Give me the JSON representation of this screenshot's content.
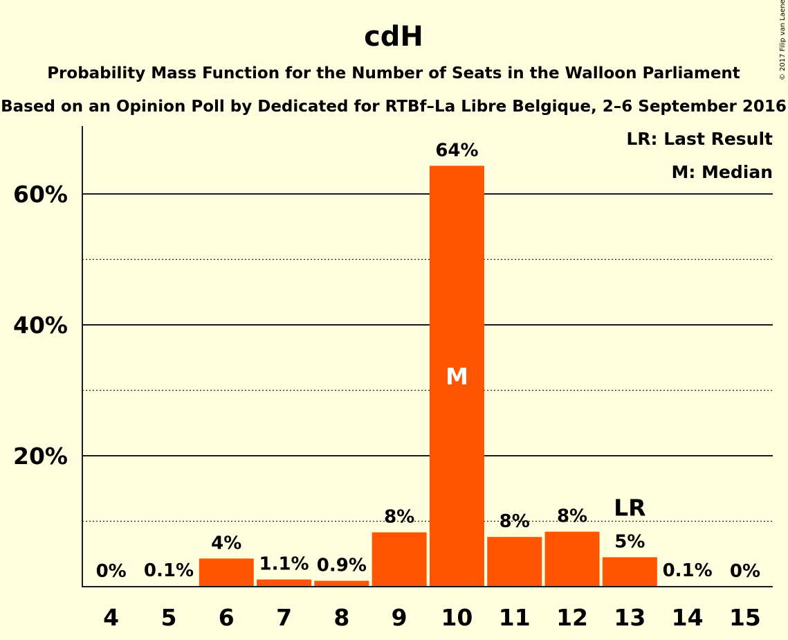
{
  "chart_data": {
    "type": "bar",
    "title": "cdH",
    "subtitle": "Probability Mass Function for the Number of Seats in the Walloon Parliament",
    "subtitle2": "Based on an Opinion Poll by Dedicated for RTBf–La Libre Belgique, 2–6 September 2016",
    "copyright": "© 2017 Filip van Laenen",
    "legend": [
      "LR: Last Result",
      "M: Median"
    ],
    "legend_position": "top-right",
    "categories": [
      "4",
      "5",
      "6",
      "7",
      "8",
      "9",
      "10",
      "11",
      "12",
      "13",
      "14",
      "15"
    ],
    "values": [
      0,
      0.1,
      4.3,
      1.1,
      0.9,
      8.3,
      64.3,
      7.6,
      8.4,
      4.5,
      0.1,
      0
    ],
    "data_labels": [
      "0%",
      "0.1%",
      "4%",
      "1.1%",
      "0.9%",
      "8%",
      "64%",
      "8%",
      "8%",
      "5%",
      "0.1%",
      "0%"
    ],
    "yticks": [
      20,
      40,
      60
    ],
    "ytick_labels": [
      "20%",
      "40%",
      "60%"
    ],
    "minor_gridlines": [
      10,
      30,
      50
    ],
    "ylim": [
      0,
      70
    ],
    "median_seat": "10",
    "median_label": "M",
    "last_result_seat": "13",
    "last_result_label": "LR",
    "bar_color": "#ff5500",
    "background_color": "#ffffe0"
  }
}
